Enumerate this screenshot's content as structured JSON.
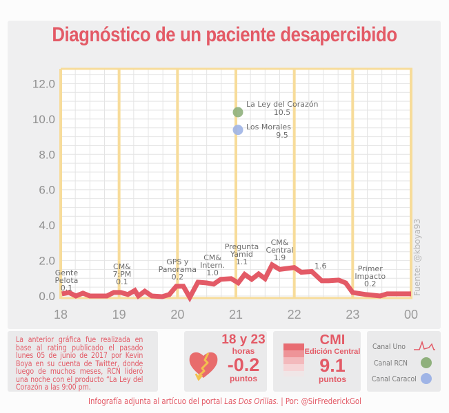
{
  "title": "Diagnóstico de un paciente desapercibido",
  "source": "Fuente: @kboya93",
  "chart_data": {
    "type": "line",
    "title": "Diagnóstico de un paciente desapercibido",
    "xlabel": "",
    "ylabel": "",
    "x_ticks": [
      "18",
      "19",
      "20",
      "21",
      "22",
      "23",
      "00"
    ],
    "y_ticks": [
      "0.0",
      "2.0",
      "4.0",
      "6.0",
      "8.0",
      "10.0",
      "12.0"
    ],
    "xlim": [
      18,
      24
    ],
    "ylim": [
      0,
      12.6
    ],
    "grid": true,
    "series": [
      {
        "name": "Canal Uno",
        "color": "#e35a66",
        "x": [
          18.02,
          18.14,
          18.26,
          18.38,
          18.5,
          18.79,
          18.91,
          19.03,
          19.15,
          19.27,
          19.33,
          19.44,
          19.56,
          19.74,
          19.86,
          19.98,
          20.1,
          20.21,
          20.35,
          20.5,
          20.62,
          20.74,
          20.92,
          21.04,
          21.15,
          21.27,
          21.39,
          21.5,
          21.62,
          21.75,
          22.0,
          22.12,
          22.3,
          22.47,
          22.59,
          22.76,
          22.88,
          23.0,
          23.23,
          23.47,
          23.59,
          23.71,
          23.88,
          24.0
        ],
        "y": [
          0.12,
          0.2,
          0.0,
          0.16,
          0.0,
          0.0,
          0.2,
          0.2,
          0.08,
          0.31,
          0.0,
          0.27,
          0.0,
          -0.04,
          0.08,
          0.55,
          0.55,
          -0.08,
          0.78,
          0.74,
          0.67,
          0.94,
          0.98,
          0.74,
          1.22,
          0.94,
          1.25,
          0.98,
          1.76,
          1.5,
          1.61,
          1.34,
          1.38,
          0.86,
          0.86,
          0.9,
          0.74,
          0.2,
          0.08,
          0.0,
          0.12,
          0.12,
          0.12,
          0.12
        ]
      }
    ],
    "points": [
      {
        "name": "La Ley del Corazón",
        "channel": "Canal RCN",
        "x": 21.0,
        "y": 10.5,
        "color": "#8fb07c"
      },
      {
        "name": "Los Morales",
        "channel": "Canal Caracol",
        "x": 21.0,
        "y": 9.5,
        "color": "#9fb4e6"
      }
    ],
    "annotations": [
      {
        "lines": [
          "Gente",
          "Pelota",
          "0.1"
        ],
        "x": 18.1,
        "y": 0.1
      },
      {
        "lines": [
          "CM&",
          "7:PM",
          "0.1"
        ],
        "x": 19.05,
        "y": 0.1
      },
      {
        "lines": [
          "GPS y",
          "Panorama",
          "0.2"
        ],
        "x": 20.0,
        "y": 0.2
      },
      {
        "lines": [
          "CM&",
          "Intern.",
          "1.0"
        ],
        "x": 20.6,
        "y": 1.0
      },
      {
        "lines": [
          "Pregunta",
          "Yamid",
          "1.1"
        ],
        "x": 21.1,
        "y": 1.1
      },
      {
        "lines": [
          "CM&",
          "Central",
          "1.9"
        ],
        "x": 21.75,
        "y": 1.9
      },
      {
        "lines": [
          "1.6"
        ],
        "x": 22.45,
        "y": 1.6
      },
      {
        "lines": [
          "Primer",
          "Impacto",
          "0.2"
        ],
        "x": 23.3,
        "y": 0.2
      },
      {
        "lines": [
          "La Ley del Corazón",
          "10.5"
        ],
        "x": 21.0,
        "y": 10.5
      },
      {
        "lines": [
          "Los Morales",
          "9.5"
        ],
        "x": 21.0,
        "y": 9.5
      }
    ],
    "legend": [
      {
        "label": "Canal Uno",
        "marker": "line",
        "color": "#e35a66"
      },
      {
        "label": "Canal RCN",
        "marker": "circle",
        "color": "#8fb07c"
      },
      {
        "label": "Canal Caracol",
        "marker": "circle",
        "color": "#9fb4e6"
      }
    ],
    "legend_position": "bottom-right"
  },
  "panels": {
    "note": "La anterior gráfica fue realizada en base al rating publicado el pasado lunes 05 de junio de 2017 por Kevin Boya en su cuenta de Twitter, donde luego de muchos meses, RCN lideró una noche con el producto “La Ley del Corazón a las 9:00 pm.",
    "drop": {
      "range": "18 y 23",
      "unit_top": "horas",
      "value": "-0.2",
      "unit": "puntos",
      "icon": "broken-heart-icon"
    },
    "cmi": {
      "title": "CMI",
      "subtitle": "Edición Central",
      "value": "9.1",
      "unit": "puntos",
      "icon": "stacked-bars-icon"
    },
    "legend": [
      "Canal Uno",
      "Canal RCN",
      "Canal Caracol"
    ]
  },
  "footer": {
    "text": "Infografía adjunta al artícuo del portal ",
    "portal": "Las Dos Orillas.",
    "sep": " |  Por: ",
    "author": "@SirFrederickGol"
  },
  "colors": {
    "accent": "#e35a66",
    "gridline_hour": "#f7dc9a",
    "gridline_minor": "#e3e3e3",
    "panel_bg": "#eaeaeb"
  }
}
